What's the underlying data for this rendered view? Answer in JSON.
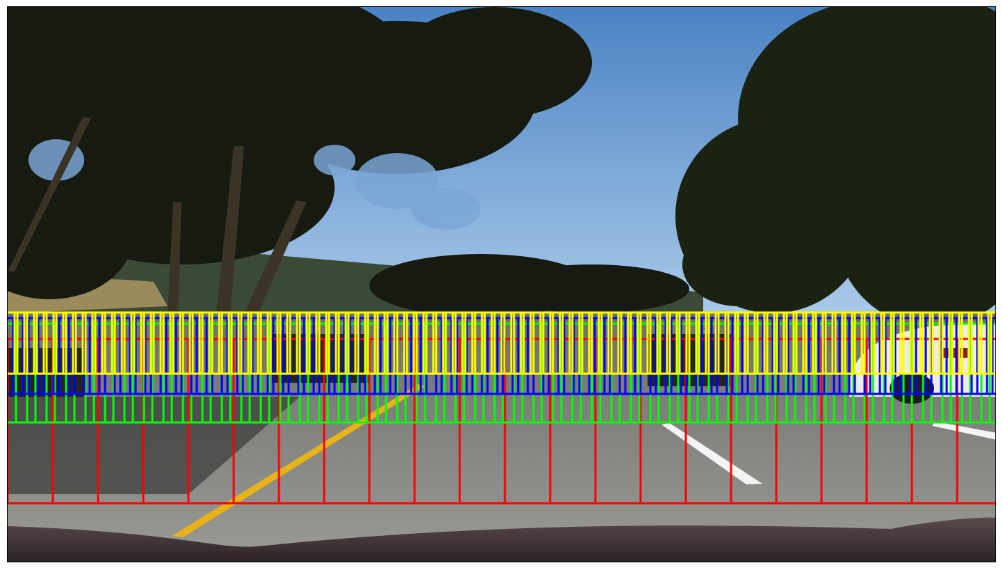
{
  "figure": {
    "description_free": true,
    "window_colors": {
      "red": "#ff0000",
      "green": "#00ff00",
      "blue": "#0000ff",
      "yellow": "#ffff00"
    },
    "scene_colors": {
      "sky_top": "#4f86c6",
      "sky_bottom": "#9fc3e6",
      "road": "#8f8f8c",
      "road_far": "#6b6d6a",
      "hood": "#3b3032",
      "foliage": "#1a1d12",
      "lane_yellow": "#e8b21a",
      "lane_white": "#f4f4f4",
      "car_white": "#ececec"
    }
  }
}
